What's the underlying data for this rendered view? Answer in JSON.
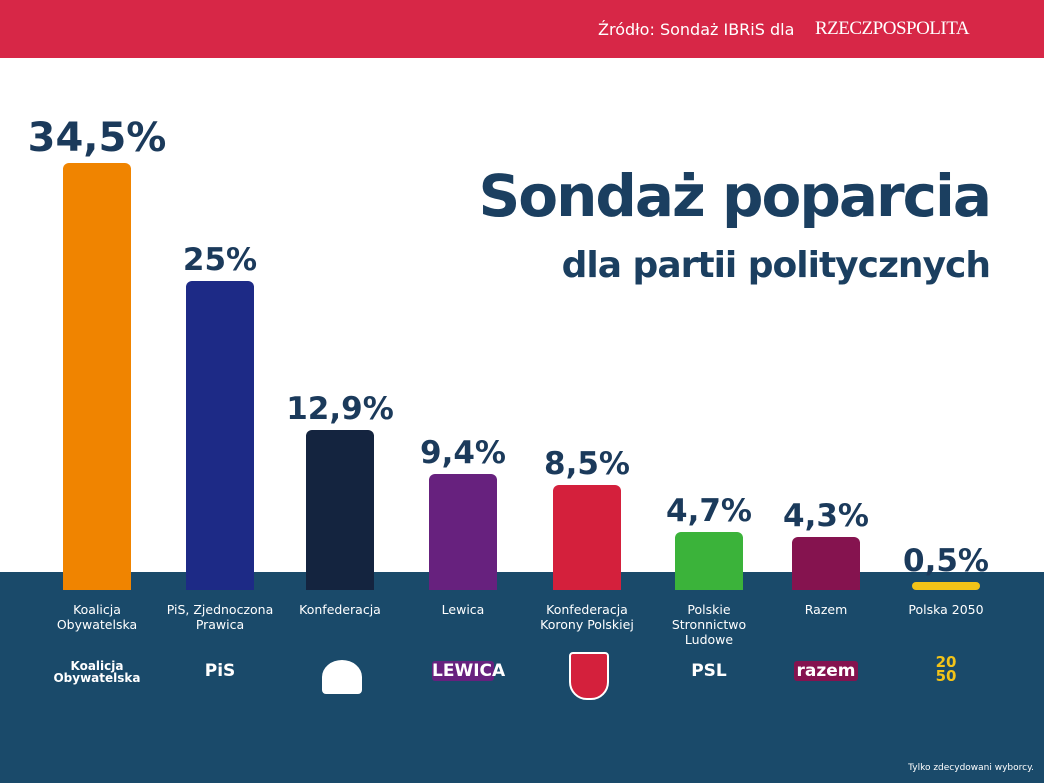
{
  "chart_data": {
    "type": "bar",
    "source": "Źródło: Sondaż IBRiS dla",
    "source_logo": "RZECZPOSPOLITA",
    "title": "Sondaż poparcia",
    "subtitle": "dla partii politycznych",
    "categories": [
      "Koalicja Obywatelska",
      "PiS, Zjednoczona Prawica",
      "Konfederacja",
      "Lewica",
      "Konfederacja Korony Polskiej",
      "Polskie Stronnictwo Ludowe",
      "Razem",
      "Polska 2050"
    ],
    "values": [
      34.5,
      25,
      12.9,
      9.4,
      8.5,
      4.7,
      4.3,
      0.5
    ],
    "value_labels": [
      "34,5%",
      "25%",
      "12,9%",
      "9,4%",
      "8,5%",
      "4,7%",
      "4,3%",
      "0,5%"
    ],
    "colors": [
      "#f08400",
      "#1d2a86",
      "#14243f",
      "#67217e",
      "#d4203c",
      "#3bb33a",
      "#85134f",
      "#f2c318"
    ],
    "logos": [
      "Koalicja Obywatelska",
      "PiS",
      null,
      "LEWICA",
      null,
      "PSL",
      "razem",
      "2050"
    ],
    "note": "Tylko zdecydowani wyborcy."
  }
}
